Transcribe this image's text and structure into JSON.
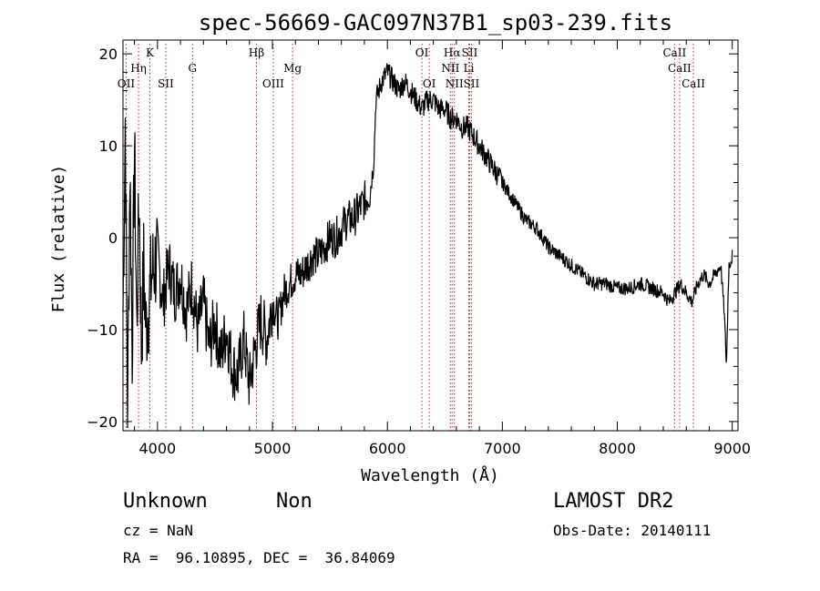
{
  "chart_data": {
    "type": "line",
    "title": "spec-56669-GAC097N37B1_sp03-239.fits",
    "xlabel": "Wavelength (Å)",
    "ylabel": "Flux (relative)",
    "xlim": [
      3700,
      9050
    ],
    "ylim": [
      -21,
      21.5
    ],
    "x_ticks": [
      4000,
      5000,
      6000,
      7000,
      8000,
      9000
    ],
    "x_tick_labels": [
      "4000",
      "5000",
      "6000",
      "7000",
      "8000",
      "9000"
    ],
    "y_ticks": [
      -20,
      -10,
      0,
      10,
      20
    ],
    "y_tick_labels": [
      "−20",
      "−10",
      "0",
      "10",
      "20"
    ],
    "line_color": "#000000",
    "marker_color": "#b03030",
    "series": [
      {
        "x": [
          3700,
          3720,
          3740,
          3760,
          3780,
          3800,
          3820,
          3840,
          3860,
          3880,
          3900,
          3950,
          4000,
          4050,
          4100,
          4150,
          4200,
          4250,
          4300,
          4350,
          4400,
          4450,
          4500,
          4550,
          4600,
          4650,
          4700,
          4750,
          4800,
          4850,
          4900,
          4950,
          5000,
          5050,
          5100,
          5150,
          5200,
          5250,
          5300,
          5350,
          5400,
          5450,
          5500,
          5550,
          5600,
          5650,
          5700,
          5750,
          5800,
          5850,
          5880,
          5900,
          5950,
          6000,
          6050,
          6100,
          6150,
          6200,
          6250,
          6300,
          6350,
          6400,
          6450,
          6500,
          6550,
          6600,
          6650,
          6700,
          6750,
          6800,
          6850,
          6900,
          6950,
          7000,
          7050,
          7100,
          7150,
          7200,
          7300,
          7400,
          7500,
          7600,
          7700,
          7800,
          7900,
          8000,
          8100,
          8200,
          8300,
          8400,
          8450,
          8500,
          8550,
          8600,
          8650,
          8700,
          8750,
          8800,
          8850,
          8900,
          8930,
          8950,
          8970,
          9000
        ],
        "y": [
          -8,
          13,
          -19,
          8,
          -12,
          10,
          -10,
          5,
          -12,
          -3,
          -10,
          -4,
          -2,
          -7,
          -3,
          -6,
          -4,
          -8,
          -5,
          -10,
          -7,
          -12,
          -9,
          -13,
          -10,
          -14,
          -15,
          -11,
          -16,
          -12,
          -9,
          -11,
          -7,
          -9,
          -6,
          -5,
          -4,
          -4,
          -3,
          -2,
          -2,
          -1,
          0,
          0,
          1,
          2,
          2,
          3,
          4,
          5,
          8,
          15,
          17,
          18,
          17,
          16,
          17,
          16,
          15,
          14,
          15,
          15,
          14,
          14,
          13,
          13,
          12,
          12,
          11,
          10,
          9,
          8,
          7,
          6,
          5,
          4,
          3,
          2,
          1,
          -1,
          -2,
          -3,
          -4,
          -5,
          -5,
          -5.5,
          -5.5,
          -5,
          -5.5,
          -6,
          -7,
          -6,
          -5,
          -6,
          -7,
          -5,
          -4,
          -5,
          -4,
          -3,
          -8,
          -14,
          -3,
          -2
        ]
      }
    ],
    "lines": [
      {
        "label": "OII",
        "x": 3727,
        "row": 3
      },
      {
        "label": "Hη",
        "x": 3835,
        "row": 2
      },
      {
        "label": "K",
        "x": 3934,
        "row": 1
      },
      {
        "label": "SII",
        "x": 4072,
        "row": 3
      },
      {
        "label": "G",
        "x": 4305,
        "row": 2
      },
      {
        "label": "Hβ",
        "x": 4861,
        "row": 1
      },
      {
        "label": "OIII",
        "x": 5007,
        "row": 3
      },
      {
        "label": "Mg",
        "x": 5175,
        "row": 2
      },
      {
        "label": "OI",
        "x": 6300,
        "row": 1
      },
      {
        "label": "OI",
        "x": 6364,
        "row": 3
      },
      {
        "label": "Hα",
        "x": 6563,
        "row": 1
      },
      {
        "label": "NII",
        "x": 6548,
        "row": 2
      },
      {
        "label": "NII",
        "x": 6583,
        "row": 3
      },
      {
        "label": "SII",
        "x": 6716,
        "row": 1
      },
      {
        "label": "Li",
        "x": 6708,
        "row": 2
      },
      {
        "label": "SII",
        "x": 6731,
        "row": 3
      },
      {
        "label": "CaII",
        "x": 8498,
        "row": 1
      },
      {
        "label": "CaII",
        "x": 8542,
        "row": 2
      },
      {
        "label": "CaII",
        "x": 8662,
        "row": 3
      }
    ]
  },
  "info": {
    "object_type": "Unknown",
    "object_subtype": "Non",
    "survey": "LAMOST DR2",
    "cz": "cz = NaN",
    "obs_date": "Obs-Date: 20140111",
    "coords": "RA =  96.10895, DEC =  36.84069"
  }
}
